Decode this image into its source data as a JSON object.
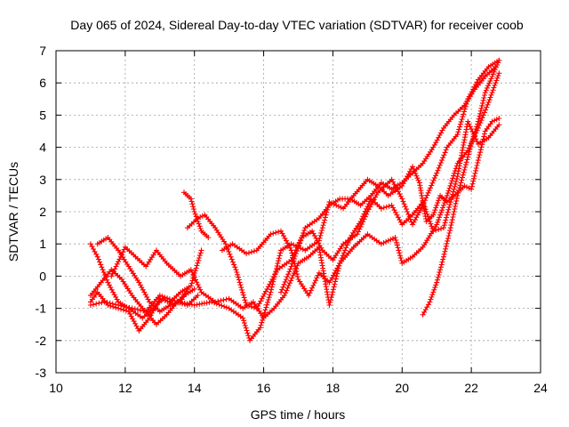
{
  "chart_data": {
    "type": "scatter",
    "title": "Day 065 of 2024, Sidereal Day-to-day VTEC variation (SDTVAR) for receiver coob",
    "xlabel": "GPS time / hours",
    "ylabel": "SDTVAR / TECUs",
    "xlim": [
      10,
      24
    ],
    "ylim": [
      -3,
      7
    ],
    "xticks": [
      10,
      12,
      14,
      16,
      18,
      20,
      22,
      24
    ],
    "yticks": [
      -3,
      -2,
      -1,
      0,
      1,
      2,
      3,
      4,
      5,
      6,
      7
    ],
    "grid": true,
    "marker": "+",
    "color": "#ff0000",
    "series": [
      {
        "points": [
          [
            11.0,
            1.0
          ],
          [
            11.2,
            0.6
          ],
          [
            11.5,
            -0.2
          ],
          [
            11.8,
            -0.8
          ],
          [
            12.1,
            -1.0
          ],
          [
            12.5,
            -1.3
          ],
          [
            12.8,
            -1.0
          ],
          [
            13.1,
            -0.7
          ],
          [
            13.4,
            -0.9
          ],
          [
            13.7,
            -0.6
          ],
          [
            14.0,
            -0.4
          ]
        ]
      },
      {
        "points": [
          [
            11.0,
            -0.6
          ],
          [
            11.3,
            -0.2
          ],
          [
            11.6,
            0.2
          ],
          [
            11.9,
            -0.1
          ],
          [
            12.2,
            -0.6
          ],
          [
            12.5,
            -1.0
          ],
          [
            12.9,
            -1.5
          ],
          [
            13.2,
            -1.2
          ],
          [
            13.5,
            -0.8
          ],
          [
            13.8,
            -0.9
          ],
          [
            14.1,
            -0.6
          ]
        ]
      },
      {
        "points": [
          [
            11.0,
            -0.8
          ],
          [
            11.2,
            -0.5
          ],
          [
            11.5,
            -0.9
          ],
          [
            11.8,
            -1.0
          ],
          [
            12.1,
            -1.1
          ],
          [
            12.4,
            -1.7
          ],
          [
            12.7,
            -1.3
          ],
          [
            13.0,
            -0.7
          ],
          [
            13.3,
            -0.8
          ],
          [
            13.6,
            -0.5
          ],
          [
            13.9,
            -0.3
          ],
          [
            14.2,
            0.8
          ]
        ]
      },
      {
        "points": [
          [
            11.0,
            -0.9
          ],
          [
            11.4,
            -0.8
          ],
          [
            11.8,
            -0.9
          ],
          [
            12.2,
            -1.0
          ],
          [
            12.6,
            -1.1
          ],
          [
            13.0,
            -0.6
          ],
          [
            13.5,
            -0.8
          ],
          [
            14.0,
            -0.9
          ],
          [
            14.5,
            -0.8
          ],
          [
            15.0,
            -1.0
          ],
          [
            15.4,
            -1.3
          ],
          [
            15.6,
            -2.0
          ],
          [
            15.9,
            -1.6
          ],
          [
            16.2,
            -0.5
          ],
          [
            16.5,
            0.8
          ],
          [
            16.8,
            1.0
          ],
          [
            17.2,
            0.8
          ],
          [
            17.6,
            1.1
          ],
          [
            17.9,
            2.3
          ],
          [
            18.3,
            2.1
          ],
          [
            18.6,
            2.5
          ],
          [
            19.0,
            3.0
          ],
          [
            19.3,
            2.8
          ],
          [
            19.6,
            2.5
          ],
          [
            20.0,
            2.8
          ],
          [
            20.3,
            3.4
          ],
          [
            20.5,
            2.9
          ],
          [
            20.7,
            1.7
          ],
          [
            20.9,
            1.9
          ],
          [
            21.1,
            2.5
          ],
          [
            21.3,
            2.3
          ],
          [
            21.6,
            2.6
          ],
          [
            21.8,
            2.8
          ],
          [
            22.0,
            2.7
          ],
          [
            22.2,
            3.6
          ],
          [
            22.4,
            4.5
          ],
          [
            22.6,
            4.8
          ],
          [
            22.8,
            4.9
          ]
        ]
      },
      {
        "points": [
          [
            11.2,
            1.0
          ],
          [
            11.5,
            1.2
          ],
          [
            11.8,
            0.8
          ],
          [
            12.1,
            0.3
          ],
          [
            12.4,
            -0.2
          ],
          [
            12.7,
            -0.8
          ],
          [
            13.0,
            -1.1
          ],
          [
            13.3,
            -0.9
          ],
          [
            13.6,
            -0.8
          ],
          [
            13.8,
            -0.4
          ]
        ]
      },
      {
        "points": [
          [
            11.6,
            0.0
          ],
          [
            12.0,
            0.9
          ],
          [
            12.3,
            0.6
          ],
          [
            12.6,
            0.3
          ],
          [
            12.9,
            0.8
          ],
          [
            13.2,
            0.4
          ],
          [
            13.6,
            0.0
          ],
          [
            13.9,
            0.2
          ],
          [
            14.2,
            -0.5
          ],
          [
            14.6,
            -0.8
          ],
          [
            15.0,
            -0.7
          ],
          [
            15.4,
            -1.0
          ],
          [
            15.7,
            -0.8
          ],
          [
            16.0,
            -1.3
          ],
          [
            16.3,
            -1.0
          ],
          [
            16.6,
            -0.6
          ],
          [
            17.0,
            0.4
          ],
          [
            17.3,
            0.6
          ],
          [
            17.6,
            0.9
          ],
          [
            17.9,
            -0.9
          ],
          [
            18.2,
            0.4
          ],
          [
            18.5,
            1.2
          ],
          [
            18.8,
            1.7
          ],
          [
            19.1,
            2.4
          ],
          [
            19.4,
            2.1
          ],
          [
            19.7,
            2.2
          ],
          [
            20.0,
            1.6
          ],
          [
            20.3,
            1.9
          ],
          [
            20.6,
            2.3
          ],
          [
            20.9,
            1.4
          ],
          [
            21.2,
            1.5
          ],
          [
            21.6,
            3.1
          ],
          [
            21.9,
            4.8
          ],
          [
            22.2,
            4.1
          ],
          [
            22.5,
            4.3
          ],
          [
            22.8,
            4.7
          ]
        ]
      },
      {
        "points": [
          [
            13.7,
            2.6
          ],
          [
            13.9,
            2.4
          ],
          [
            14.0,
            2.0
          ],
          [
            14.2,
            1.4
          ],
          [
            14.4,
            1.2
          ]
        ]
      },
      {
        "points": [
          [
            13.8,
            1.5
          ],
          [
            14.1,
            1.8
          ],
          [
            14.3,
            1.9
          ],
          [
            14.6,
            1.5
          ],
          [
            14.9,
            1.0
          ],
          [
            15.2,
            0.2
          ],
          [
            15.5,
            -0.9
          ],
          [
            15.8,
            -1.0
          ],
          [
            16.1,
            -0.4
          ],
          [
            16.4,
            0.2
          ],
          [
            16.8,
            0.5
          ],
          [
            17.1,
            1.2
          ],
          [
            17.4,
            1.4
          ],
          [
            17.7,
            0.8
          ],
          [
            18.0,
            0.5
          ],
          [
            18.3,
            1.0
          ],
          [
            18.7,
            1.3
          ],
          [
            19.0,
            2.0
          ],
          [
            19.3,
            2.6
          ],
          [
            19.7,
            3.0
          ],
          [
            20.0,
            2.4
          ],
          [
            20.3,
            1.6
          ],
          [
            20.6,
            2.2
          ],
          [
            21.0,
            3.2
          ],
          [
            21.3,
            4.0
          ],
          [
            21.6,
            4.4
          ],
          [
            21.9,
            5.5
          ],
          [
            22.2,
            6.1
          ],
          [
            22.5,
            6.5
          ],
          [
            22.8,
            6.7
          ]
        ]
      },
      {
        "points": [
          [
            14.8,
            0.8
          ],
          [
            15.1,
            1.0
          ],
          [
            15.5,
            0.7
          ],
          [
            15.8,
            0.8
          ],
          [
            16.2,
            1.3
          ],
          [
            16.5,
            1.4
          ],
          [
            16.8,
            0.8
          ],
          [
            17.0,
            -0.1
          ],
          [
            17.3,
            -0.6
          ],
          [
            17.6,
            0.1
          ],
          [
            17.9,
            -0.2
          ],
          [
            18.2,
            0.4
          ],
          [
            18.6,
            0.9
          ],
          [
            19.0,
            1.3
          ],
          [
            19.4,
            1.0
          ],
          [
            19.8,
            1.2
          ],
          [
            20.0,
            0.4
          ],
          [
            20.3,
            0.6
          ],
          [
            20.6,
            0.9
          ],
          [
            21.0,
            1.6
          ],
          [
            21.3,
            2.5
          ],
          [
            21.6,
            3.5
          ],
          [
            21.9,
            3.9
          ],
          [
            22.2,
            4.6
          ],
          [
            22.5,
            5.4
          ],
          [
            22.8,
            6.3
          ]
        ]
      },
      {
        "points": [
          [
            16.5,
            -0.5
          ],
          [
            16.8,
            0.3
          ],
          [
            17.2,
            1.5
          ],
          [
            17.6,
            1.8
          ],
          [
            17.9,
            2.2
          ],
          [
            18.2,
            2.4
          ],
          [
            18.5,
            2.4
          ],
          [
            18.8,
            2.2
          ],
          [
            19.1,
            2.5
          ],
          [
            19.4,
            2.9
          ],
          [
            19.7,
            2.7
          ],
          [
            20.0,
            2.9
          ],
          [
            20.3,
            3.2
          ],
          [
            20.6,
            3.5
          ],
          [
            20.9,
            4.0
          ],
          [
            21.2,
            4.6
          ],
          [
            21.5,
            5.0
          ],
          [
            21.8,
            5.3
          ],
          [
            22.1,
            5.8
          ],
          [
            22.4,
            6.2
          ],
          [
            22.7,
            6.5
          ]
        ]
      },
      {
        "points": [
          [
            20.6,
            -1.2
          ],
          [
            20.8,
            -0.8
          ],
          [
            21.0,
            -0.2
          ],
          [
            21.2,
            0.6
          ],
          [
            21.4,
            1.5
          ],
          [
            21.6,
            2.5
          ],
          [
            21.8,
            3.3
          ],
          [
            22.0,
            4.1
          ],
          [
            22.2,
            4.8
          ],
          [
            22.4,
            5.7
          ],
          [
            22.6,
            6.2
          ],
          [
            22.8,
            6.7
          ]
        ]
      }
    ]
  }
}
